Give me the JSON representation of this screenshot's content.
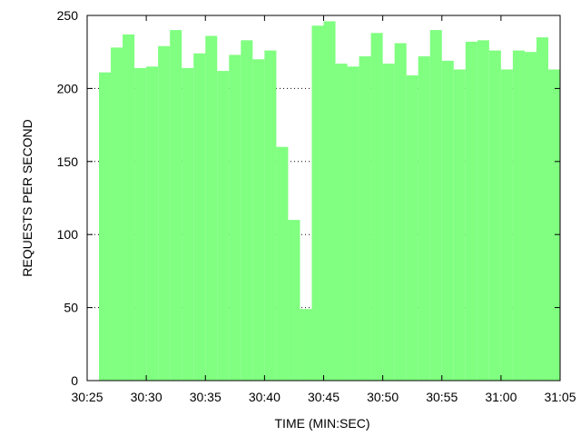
{
  "chart_data": {
    "type": "bar",
    "title": "",
    "xlabel": "TIME (MIN:SEC)",
    "ylabel": "REQUESTS PER SECOND",
    "xlim": [
      "30:25",
      "31:05"
    ],
    "ylim": [
      0,
      250
    ],
    "grid": true,
    "bar_color": "#80ff80",
    "x_ticks": [
      "30:25",
      "30:30",
      "30:35",
      "30:40",
      "30:45",
      "30:50",
      "30:55",
      "31:00",
      "31:05"
    ],
    "y_ticks": [
      0,
      50,
      100,
      150,
      200,
      250
    ],
    "x": [
      "30:27",
      "30:28",
      "30:29",
      "30:30",
      "30:31",
      "30:32",
      "30:33",
      "30:34",
      "30:35",
      "30:36",
      "30:37",
      "30:38",
      "30:39",
      "30:40",
      "30:41",
      "30:42",
      "30:43",
      "30:44",
      "30:45",
      "30:46",
      "30:47",
      "30:48",
      "30:49",
      "30:50",
      "30:51",
      "30:52",
      "30:53",
      "30:54",
      "30:55",
      "30:56",
      "30:57",
      "30:58",
      "30:59",
      "31:00",
      "31:01",
      "31:02",
      "31:03",
      "31:04",
      "31:05"
    ],
    "values": [
      211,
      228,
      237,
      214,
      215,
      229,
      240,
      214,
      224,
      236,
      212,
      223,
      233,
      220,
      226,
      160,
      110,
      49,
      243,
      246,
      217,
      215,
      222,
      238,
      217,
      231,
      209,
      222,
      240,
      219,
      213,
      232,
      233,
      226,
      213,
      226,
      225,
      235,
      213
    ]
  }
}
